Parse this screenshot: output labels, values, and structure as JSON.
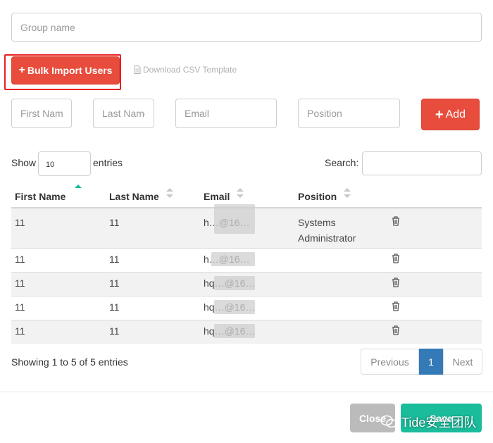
{
  "form": {
    "group_name_placeholder": "Group name",
    "bulk_import_label": "Bulk Import Users",
    "csv_template_label": "Download CSV Template",
    "first_name_placeholder": "First Name",
    "last_name_placeholder": "Last Name",
    "email_placeholder": "Email",
    "position_placeholder": "Position",
    "add_label": "Add"
  },
  "table_controls": {
    "show_label": "Show",
    "page_size": "10",
    "entries_label": "entries",
    "search_label": "Search:"
  },
  "table": {
    "headers": [
      "First Name",
      "Last Name",
      "Email",
      "Position"
    ],
    "sorted_column": "First Name",
    "rows": [
      {
        "first": "11",
        "last": "11",
        "email": "h…@16…",
        "position": "Systems Administrator"
      },
      {
        "first": "11",
        "last": "11",
        "email": "h…@16…",
        "position": ""
      },
      {
        "first": "11",
        "last": "11",
        "email": "hq…@16…",
        "position": ""
      },
      {
        "first": "11",
        "last": "11",
        "email": "hq…@16…",
        "position": ""
      },
      {
        "first": "11",
        "last": "11",
        "email": "hq…@16…",
        "position": ""
      }
    ]
  },
  "pagination": {
    "info": "Showing 1 to 5 of 5 entries",
    "previous": "Previous",
    "current": "1",
    "next": "Next"
  },
  "footer": {
    "close_label": "Close",
    "save_label": "Save",
    "watermark": "Tide安全团队"
  },
  "colors": {
    "accent_red": "#e74c3c",
    "accent_green": "#1abc9c",
    "page_active": "#337ab7",
    "highlight_box": "#e82020"
  },
  "icons": [
    "plus-icon",
    "file-icon",
    "sort-icon",
    "trash-icon",
    "wechat-icon"
  ]
}
